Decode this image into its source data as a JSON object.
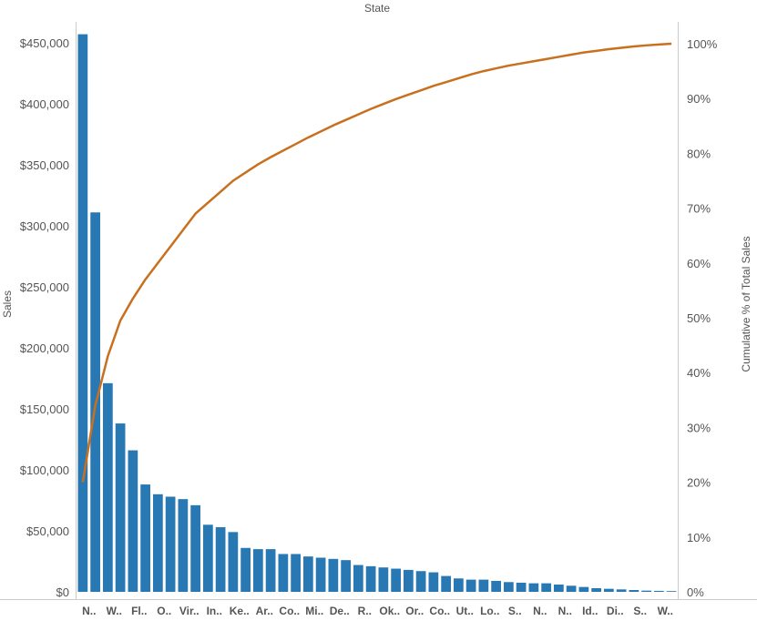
{
  "chart_data": {
    "type": "bar",
    "title": "State",
    "ylabel": "Sales",
    "y2label": "Cumulative % of Total Sales",
    "ylim": [
      0,
      460000
    ],
    "y2lim": [
      0,
      100
    ],
    "grid": false,
    "colors": {
      "bars": "#2878b4",
      "line": "#c8701e",
      "axis": "#cccccc",
      "text": "#555555"
    },
    "categories": [
      "N..",
      "",
      "W..",
      "",
      "Fl..",
      "",
      "O..",
      "",
      "Vir..",
      "",
      "In..",
      "",
      "Ke..",
      "",
      "Ar..",
      "",
      "Co..",
      "",
      "Mi..",
      "",
      "De..",
      "",
      "R..",
      "",
      "Ok..",
      "",
      "Or..",
      "",
      "Co..",
      "",
      "Ut..",
      "",
      "Lo..",
      "",
      "S..",
      "",
      "N..",
      "",
      "N..",
      "",
      "Id..",
      "",
      "Di..",
      "",
      "S..",
      "",
      "W..",
      ""
    ],
    "y_ticks": [
      "$0",
      "$50,000",
      "$100,000",
      "$150,000",
      "$200,000",
      "$250,000",
      "$300,000",
      "$350,000",
      "$400,000",
      "$450,000"
    ],
    "y_tick_values": [
      0,
      50000,
      100000,
      150000,
      200000,
      250000,
      300000,
      350000,
      400000,
      450000
    ],
    "y2_ticks": [
      "0%",
      "10%",
      "20%",
      "30%",
      "40%",
      "50%",
      "60%",
      "70%",
      "80%",
      "90%",
      "100%"
    ],
    "y2_tick_values": [
      0,
      10,
      20,
      30,
      40,
      50,
      60,
      70,
      80,
      90,
      100
    ],
    "series": [
      {
        "type": "bar",
        "values": [
          457000,
          311000,
          171000,
          138000,
          116000,
          88000,
          80000,
          78000,
          76000,
          71000,
          55000,
          53000,
          49000,
          36000,
          35000,
          35000,
          31000,
          31000,
          29000,
          28000,
          27000,
          26000,
          22000,
          21000,
          20000,
          19000,
          18000,
          17000,
          16000,
          13000,
          11000,
          10000,
          10000,
          9000,
          8000,
          7500,
          7000,
          7000,
          6000,
          5000,
          4000,
          3000,
          2500,
          2000,
          1500,
          1000,
          800,
          600
        ]
      },
      {
        "type": "line",
        "values": [
          20,
          34,
          43,
          49.5,
          53.5,
          57,
          60,
          63,
          66,
          69,
          71,
          73,
          75,
          76.5,
          78,
          79.3,
          80.5,
          81.7,
          82.9,
          84,
          85.1,
          86.1,
          87.1,
          88.1,
          89,
          89.9,
          90.7,
          91.5,
          92.3,
          93,
          93.7,
          94.4,
          95,
          95.5,
          96,
          96.4,
          96.8,
          97.2,
          97.6,
          98,
          98.4,
          98.7,
          99,
          99.25,
          99.5,
          99.7,
          99.85,
          100
        ]
      }
    ]
  }
}
